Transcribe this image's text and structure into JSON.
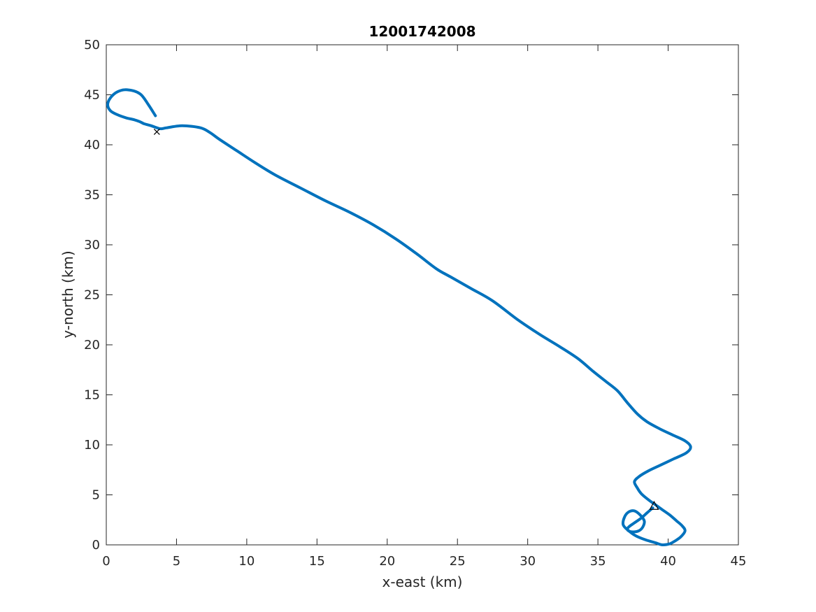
{
  "chart_data": {
    "type": "line",
    "title": "12001742008",
    "xlabel": "x-east (km)",
    "ylabel": "y-north (km)",
    "xlim": [
      0,
      45
    ],
    "ylim": [
      0,
      50
    ],
    "xticks": [
      0,
      5,
      10,
      15,
      20,
      25,
      30,
      35,
      40,
      45
    ],
    "yticks": [
      0,
      5,
      10,
      15,
      20,
      25,
      30,
      35,
      40,
      45,
      50
    ],
    "grid": false,
    "legend": "none",
    "series": [
      {
        "color": "#0072BD",
        "x": [
          38.9,
          38.5,
          38.1,
          37.6,
          37.2,
          37.1,
          37.4,
          37.9,
          38.2,
          38.3,
          38.0,
          37.6,
          37.2,
          36.9,
          36.8,
          37.2,
          37.7,
          38.4,
          39.1,
          39.6,
          40.1,
          40.5,
          40.9,
          41.2,
          41.0,
          40.6,
          40.1,
          39.6,
          39.1,
          38.6,
          38.1,
          37.8,
          37.6,
          37.9,
          38.6,
          39.5,
          40.4,
          41.3,
          41.6,
          41.2,
          40.3,
          39.4,
          38.5,
          37.8,
          37.1,
          36.4,
          35.6,
          34.7,
          33.6,
          32.3,
          30.9,
          29.3,
          27.5,
          26.0,
          24.5,
          23.5,
          22.1,
          20.6,
          19.0,
          17.4,
          15.6,
          13.8,
          12.0,
          10.6,
          9.3,
          8.1,
          7.4,
          6.7,
          5.4,
          4.3,
          3.9,
          3.6,
          3.2,
          2.7,
          2.4,
          2.0,
          1.4,
          0.8,
          0.3,
          0.1,
          0.3,
          0.8,
          1.5,
          2.4,
          3.0,
          3.5
        ],
        "y": [
          3.7,
          3.2,
          2.7,
          2.2,
          1.8,
          1.5,
          1.3,
          1.4,
          1.8,
          2.4,
          3.0,
          3.4,
          3.3,
          2.8,
          2.0,
          1.4,
          0.9,
          0.5,
          0.2,
          0.0,
          0.1,
          0.4,
          0.8,
          1.4,
          1.9,
          2.4,
          3.0,
          3.5,
          4.0,
          4.5,
          5.1,
          5.7,
          6.3,
          6.8,
          7.4,
          8.0,
          8.6,
          9.2,
          9.8,
          10.4,
          11.0,
          11.6,
          12.3,
          13.1,
          14.2,
          15.4,
          16.3,
          17.3,
          18.6,
          19.8,
          21.0,
          22.5,
          24.4,
          25.6,
          26.8,
          27.6,
          29.1,
          30.6,
          32.0,
          33.2,
          34.4,
          35.7,
          37.0,
          38.2,
          39.4,
          40.5,
          41.2,
          41.7,
          41.9,
          41.7,
          41.6,
          41.7,
          41.9,
          42.1,
          42.3,
          42.5,
          42.7,
          43.0,
          43.4,
          44.0,
          44.7,
          45.3,
          45.5,
          45.1,
          44.0,
          42.9
        ]
      }
    ],
    "markers": [
      {
        "symbol": "×",
        "x": 3.6,
        "y": 41.3
      },
      {
        "symbol": "△",
        "x": 39.0,
        "y": 3.9
      }
    ]
  }
}
